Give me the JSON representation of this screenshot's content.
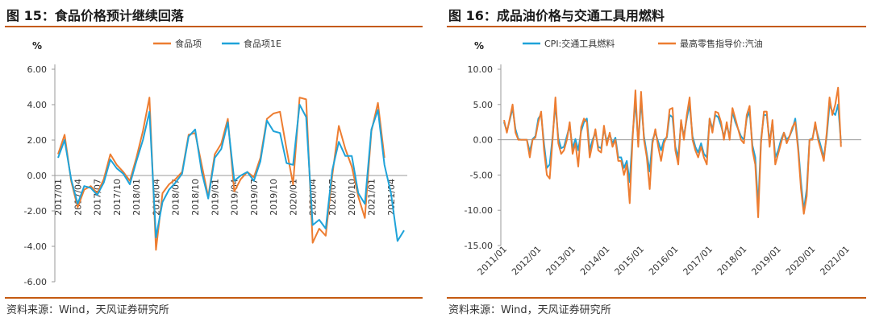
{
  "figures": [
    {
      "title": "图 15：食品价格预计继续回落",
      "source": "资料来源：Wind，天风证券研究所"
    },
    {
      "title": "图 16：成品油价格与交通工具用燃料",
      "source": "资料来源：Wind，天风证券研究所"
    }
  ],
  "colors": {
    "orange": "#ED7D31",
    "blue": "#1FA3D9",
    "rule": "#c55a11"
  },
  "chart_data": [
    {
      "type": "line",
      "title": "",
      "xlabel": "",
      "ylabel": "%",
      "ylim": [
        -6,
        6
      ],
      "yticks": [
        "6.00",
        "4.00",
        "2.00",
        "0.00",
        "-2.00",
        "-4.00",
        "-6.00"
      ],
      "ytick_values": [
        6,
        4,
        2,
        0,
        -2,
        -4,
        -6
      ],
      "xtick_labels": [
        "2017/01",
        "2017/04",
        "2017/07",
        "2017/10",
        "2018/01",
        "2018/04",
        "2018/07",
        "2018/10",
        "2019/01",
        "2019/04",
        "2019/07",
        "2019/10",
        "2020/01",
        "2020/04",
        "2020/07",
        "2020/10",
        "2021/01",
        "2021/04"
      ],
      "x_start": "2017/01",
      "legend": "top-center",
      "series": [
        {
          "name": "食品项",
          "color": "#ED7D31",
          "values": [
            1.2,
            2.3,
            -0.3,
            -1.8,
            -0.8,
            -0.6,
            -1.0,
            -0.2,
            1.2,
            0.6,
            0.2,
            -0.3,
            1.0,
            2.5,
            4.4,
            -4.2,
            -1.0,
            -0.5,
            -0.2,
            0.2,
            2.3,
            2.4,
            0.6,
            -1.2,
            1.2,
            1.8,
            3.2,
            -0.9,
            -0.2,
            0.2,
            -0.1,
            1.0,
            3.2,
            3.5,
            3.6,
            1.5,
            -0.5,
            4.4,
            4.3,
            -3.8,
            -3.0,
            -3.4,
            0.0,
            2.8,
            1.5,
            0.5,
            -1.2,
            -2.4,
            2.5,
            4.1,
            1.0
          ]
        },
        {
          "name": "食品项1E",
          "color": "#1FA3D9",
          "values": [
            1.0,
            2.0,
            -0.2,
            -1.6,
            -0.6,
            -0.7,
            -1.1,
            -0.4,
            0.9,
            0.4,
            0.1,
            -0.5,
            0.8,
            2.0,
            3.6,
            -3.5,
            -1.5,
            -0.8,
            -0.4,
            0.1,
            2.2,
            2.6,
            0.2,
            -1.3,
            1.0,
            1.5,
            3.0,
            -0.3,
            0.0,
            0.2,
            -0.3,
            0.8,
            3.1,
            2.5,
            2.4,
            0.7,
            0.6,
            4.0,
            3.3,
            -2.8,
            -2.5,
            -3.0,
            0.3,
            1.9,
            1.1,
            1.1,
            -1.0,
            -1.6,
            2.6,
            3.7,
            0.6,
            -1.0,
            -3.7,
            -3.1
          ]
        }
      ]
    },
    {
      "type": "line",
      "title": "",
      "xlabel": "",
      "ylabel": "%",
      "ylim": [
        -15,
        10
      ],
      "yticks": [
        "10.00",
        "5.00",
        "0.00",
        "-5.00",
        "-10.00",
        "-15.00"
      ],
      "ytick_values": [
        10,
        5,
        0,
        -5,
        -10,
        -15
      ],
      "xtick_labels": [
        "2011/01",
        "2012/01",
        "2013/01",
        "2014/01",
        "2015/01",
        "2016/01",
        "2017/01",
        "2018/01",
        "2019/01",
        "2020/01",
        "2021/01"
      ],
      "x_start": "2011/01",
      "legend": "top-center",
      "series": [
        {
          "name": "CPI:交通工具燃料",
          "color": "#1FA3D9",
          "values": [
            2.5,
            1.2,
            2.8,
            4.5,
            1.5,
            0.1,
            0.0,
            0.0,
            0.0,
            -1.7,
            0.1,
            0.5,
            3.0,
            3.6,
            -0.6,
            -4.0,
            -3.5,
            0.5,
            5.0,
            0.2,
            -1.2,
            -1.0,
            0.5,
            2.0,
            -1.2,
            0.1,
            -1.5,
            1.2,
            2.5,
            3.0,
            -1.5,
            0.0,
            1.0,
            -1.0,
            -1.2,
            1.5,
            -0.2,
            0.8,
            -0.5,
            0.3,
            -2.5,
            -2.5,
            -4.0,
            -3.0,
            -6.0,
            0.5,
            5.5,
            -0.5,
            5.5,
            0.5,
            -2.0,
            -4.5,
            0.0,
            1.0,
            -0.3,
            -1.5,
            0.0,
            0.3,
            3.5,
            3.2,
            -1.0,
            -2.5,
            2.5,
            0.5,
            3.0,
            5.0,
            0.5,
            -1.0,
            -1.8,
            -0.5,
            -2.0,
            -2.5,
            3.0,
            1.5,
            3.5,
            3.2,
            2.0,
            0.5,
            2.0,
            0.5,
            4.0,
            2.5,
            1.5,
            0.5,
            0.0,
            3.0,
            4.0,
            -0.8,
            -2.5,
            -9.5,
            0.0,
            3.5,
            3.5,
            -0.3,
            2.5,
            -2.5,
            -1.5,
            0.0,
            1.0,
            0.0,
            0.5,
            1.5,
            3.0,
            -1.0,
            -6.0,
            -10.0,
            -7.0,
            0.0,
            0.2,
            2.0,
            0.5,
            -1.0,
            -2.5,
            0.5,
            5.0,
            4.0,
            3.5,
            5.0,
            -0.5
          ]
        },
        {
          "name": "最高零售指导价:汽油",
          "color": "#ED7D31",
          "values": [
            2.8,
            1.0,
            3.0,
            5.0,
            1.0,
            0.0,
            0.0,
            0.0,
            0.0,
            -2.5,
            0.0,
            0.3,
            2.5,
            4.0,
            -1.5,
            -5.0,
            -5.5,
            0.0,
            6.0,
            -0.5,
            -2.0,
            -1.5,
            0.0,
            2.5,
            -2.0,
            -0.5,
            -3.8,
            1.8,
            3.0,
            2.5,
            -2.5,
            -0.5,
            1.5,
            -1.5,
            -1.8,
            2.0,
            -0.8,
            1.0,
            -1.0,
            0.0,
            -3.0,
            -3.0,
            -5.0,
            -3.5,
            -9.0,
            0.0,
            7.0,
            -1.0,
            6.8,
            0.0,
            -2.5,
            -7.0,
            -0.5,
            1.5,
            -1.0,
            -3.0,
            -0.5,
            0.5,
            4.3,
            4.5,
            -1.5,
            -3.5,
            2.8,
            0.0,
            3.5,
            6.0,
            0.0,
            -1.5,
            -2.5,
            -1.0,
            -2.5,
            -3.5,
            3.0,
            1.0,
            4.0,
            3.8,
            2.5,
            0.0,
            2.5,
            0.0,
            4.5,
            3.0,
            1.5,
            0.0,
            -0.5,
            3.5,
            4.8,
            -1.5,
            -3.5,
            -11.0,
            -0.5,
            4.0,
            4.0,
            -1.0,
            2.8,
            -3.5,
            -2.0,
            -0.5,
            1.0,
            -0.5,
            0.5,
            1.8,
            2.5,
            -1.5,
            -7.0,
            -10.5,
            -8.0,
            0.0,
            0.0,
            2.5,
            0.0,
            -1.5,
            -3.0,
            1.0,
            6.0,
            3.5,
            5.0,
            7.4,
            -1.0
          ]
        }
      ]
    }
  ]
}
